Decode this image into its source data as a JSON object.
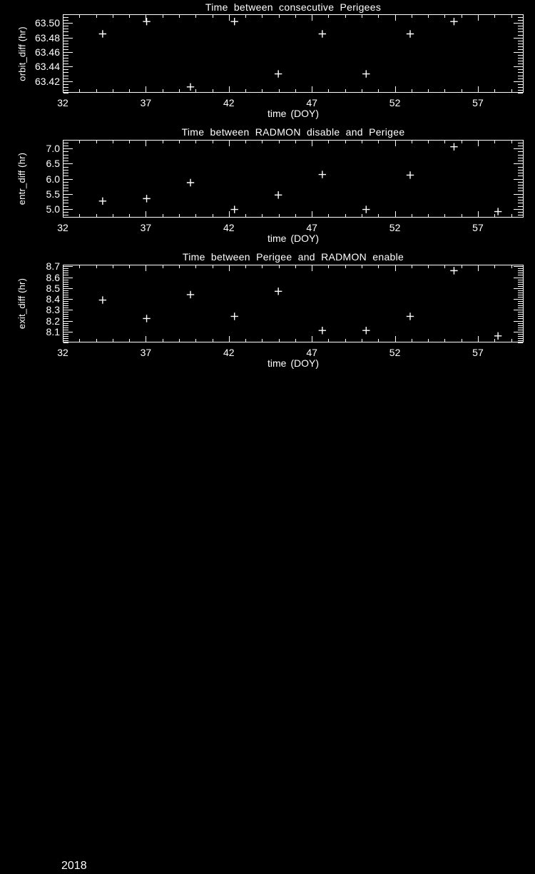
{
  "page": {
    "background": "#000000",
    "foreground": "#ffffff",
    "footer_year": "2018"
  },
  "chart_data": [
    {
      "type": "scatter",
      "title": "Time between consecutive Perigees",
      "xlabel": "time (DOY)",
      "ylabel": "orbit_diff (hr)",
      "marker": "plus",
      "marker_color": "#ffffff",
      "grid": false,
      "xlim": [
        32,
        59.75
      ],
      "ylim": [
        63.404,
        63.512
      ],
      "xticks": [
        32,
        37,
        42,
        47,
        52,
        57
      ],
      "xtick_labels": [
        "32",
        "37",
        "42",
        "47",
        "52",
        "57"
      ],
      "yticks": [
        63.42,
        63.44,
        63.46,
        63.48,
        63.5
      ],
      "ytick_labels": [
        "63.42",
        "63.44",
        "63.46",
        "63.48",
        "63.50"
      ],
      "x_minor_interval": 1,
      "y_minor_interval": 0.004,
      "x": [
        34.4,
        37.05,
        39.69,
        42.34,
        44.98,
        47.63,
        50.27,
        52.92,
        55.56
      ],
      "y": [
        63.485,
        63.502,
        63.412,
        63.502,
        63.43,
        63.485,
        63.43,
        63.485,
        63.502
      ]
    },
    {
      "type": "scatter",
      "title": "Time between RADMON disable and Perigee",
      "xlabel": "time (DOY)",
      "ylabel": "entr_diff (hr)",
      "marker": "plus",
      "marker_color": "#ffffff",
      "grid": false,
      "xlim": [
        32,
        59.75
      ],
      "ylim": [
        4.71,
        7.29
      ],
      "xticks": [
        32,
        37,
        42,
        47,
        52,
        57
      ],
      "xtick_labels": [
        "32",
        "37",
        "42",
        "47",
        "52",
        "57"
      ],
      "yticks": [
        5.0,
        5.5,
        6.0,
        6.5,
        7.0
      ],
      "ytick_labels": [
        "5.0",
        "5.5",
        "6.0",
        "6.5",
        "7.0"
      ],
      "x_minor_interval": 1,
      "y_minor_interval": 0.1,
      "x": [
        34.4,
        37.05,
        39.69,
        42.34,
        44.98,
        47.63,
        50.27,
        52.92,
        55.56,
        58.21
      ],
      "y": [
        5.26,
        5.34,
        5.87,
        4.98,
        5.46,
        6.14,
        4.98,
        6.12,
        7.06,
        4.91
      ]
    },
    {
      "type": "scatter",
      "title": "Time between Perigee and RADMON enable",
      "xlabel": "time (DOY)",
      "ylabel": "exit_diff (hr)",
      "marker": "plus",
      "marker_color": "#ffffff",
      "grid": false,
      "xlim": [
        32,
        59.75
      ],
      "ylim": [
        8.0,
        8.715
      ],
      "xticks": [
        32,
        37,
        42,
        47,
        52,
        57
      ],
      "xtick_labels": [
        "32",
        "37",
        "42",
        "47",
        "52",
        "57"
      ],
      "yticks": [
        8.1,
        8.2,
        8.3,
        8.4,
        8.5,
        8.6,
        8.7
      ],
      "ytick_labels": [
        "8.1",
        "8.2",
        "8.3",
        "8.4",
        "8.5",
        "8.6",
        "8.7"
      ],
      "x_minor_interval": 1,
      "y_minor_interval": 0.02,
      "x": [
        34.4,
        37.05,
        39.69,
        42.34,
        44.98,
        47.63,
        50.27,
        52.92,
        55.56,
        58.21
      ],
      "y": [
        8.39,
        8.22,
        8.44,
        8.24,
        8.47,
        8.11,
        8.11,
        8.24,
        8.66,
        8.06
      ]
    }
  ]
}
